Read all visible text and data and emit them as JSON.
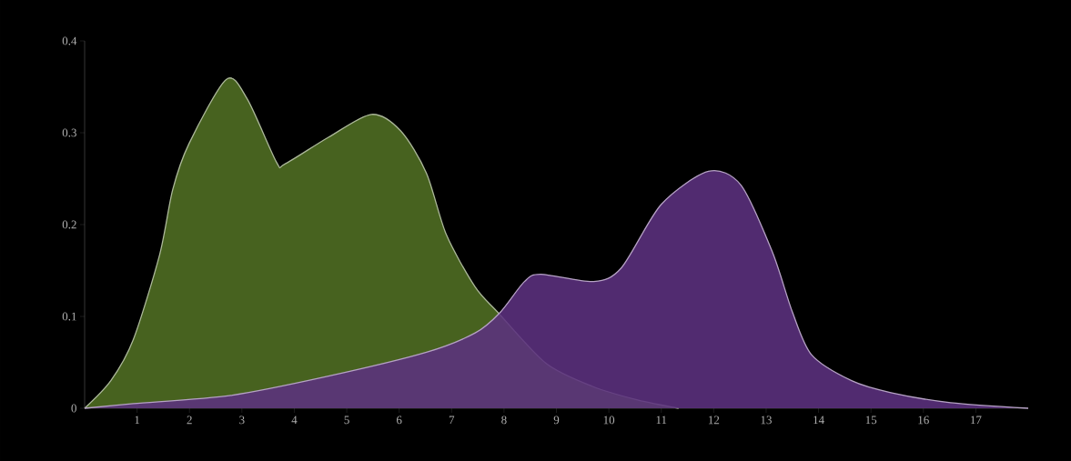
{
  "chart_data": {
    "type": "area",
    "xlim": [
      0,
      18
    ],
    "ylim": [
      0,
      0.4
    ],
    "xticks": [
      1,
      2,
      3,
      4,
      5,
      6,
      7,
      8,
      9,
      10,
      11,
      12,
      13,
      14,
      15,
      16,
      17
    ],
    "yticks": [
      0,
      0.1,
      0.2,
      0.3,
      0.4
    ],
    "series": [
      {
        "color": "#47621f",
        "x": [
          0,
          0.5,
          0.93,
          1.43,
          1.68,
          1.99,
          2.7,
          3.1,
          3.66,
          3.82,
          4.65,
          5.47,
          6.03,
          6.52,
          6.9,
          7.45,
          7.89,
          8.8,
          9.68,
          10.55,
          11.33
        ],
        "values": [
          0,
          0.03,
          0.075,
          0.167,
          0.238,
          0.288,
          0.358,
          0.337,
          0.268,
          0.266,
          0.295,
          0.32,
          0.302,
          0.256,
          0.189,
          0.132,
          0.104,
          0.049,
          0.024,
          0.009,
          0
        ]
      },
      {
        "color": "#5c317f",
        "x": [
          0,
          0.93,
          2.79,
          4.65,
          6.52,
          7.45,
          7.92,
          8.39,
          8.7,
          9.71,
          10.24,
          11.0,
          11.9,
          12.52,
          13.12,
          13.5,
          13.87,
          14.63,
          15.38,
          16.52,
          18
        ],
        "values": [
          0,
          0.005,
          0.014,
          0.035,
          0.061,
          0.082,
          0.104,
          0.138,
          0.146,
          0.138,
          0.153,
          0.222,
          0.258,
          0.243,
          0.17,
          0.105,
          0.058,
          0.03,
          0.017,
          0.006,
          0
        ]
      }
    ]
  }
}
